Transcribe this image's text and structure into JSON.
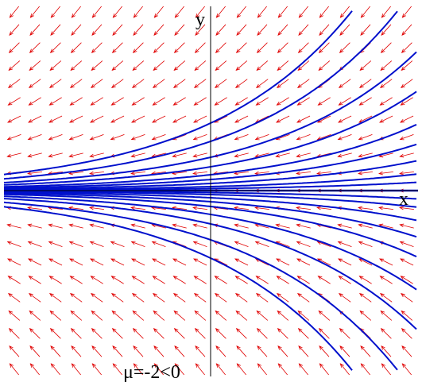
{
  "axes": {
    "x_label": "x",
    "y_label": "y"
  },
  "annotation": "μ=-2<0"
}
